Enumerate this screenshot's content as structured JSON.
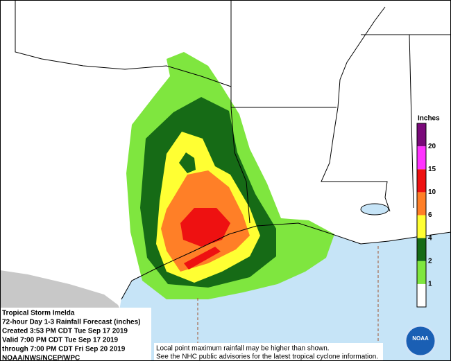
{
  "info": {
    "lines": [
      "Tropical Storm Imelda",
      "72-hour Day 1-3 Rainfall Forecast (inches)",
      "Created 3:53 PM CDT Tue Sep 17 2019",
      "Valid 7:00 PM CDT Tue Sep 17 2019",
      "through 7:00 PM CDT Fri Sep 20 2019",
      "NOAA/NWS/NCEP/WPC"
    ]
  },
  "note": {
    "lines": [
      "Local point maximum rainfall may be higher than shown.",
      "See the NHC public advisories for the latest tropical cyclone information."
    ]
  },
  "legend": {
    "title": "Inches",
    "levels": [
      1,
      2,
      4,
      6,
      10,
      15,
      20
    ],
    "colors": [
      "#ffffff",
      "#7fe63f",
      "#166b16",
      "#ffff33",
      "#ff7f27",
      "#ee1111",
      "#ff33ff",
      "#7a0a7a"
    ]
  },
  "logo": {
    "text": "NOAA"
  }
}
